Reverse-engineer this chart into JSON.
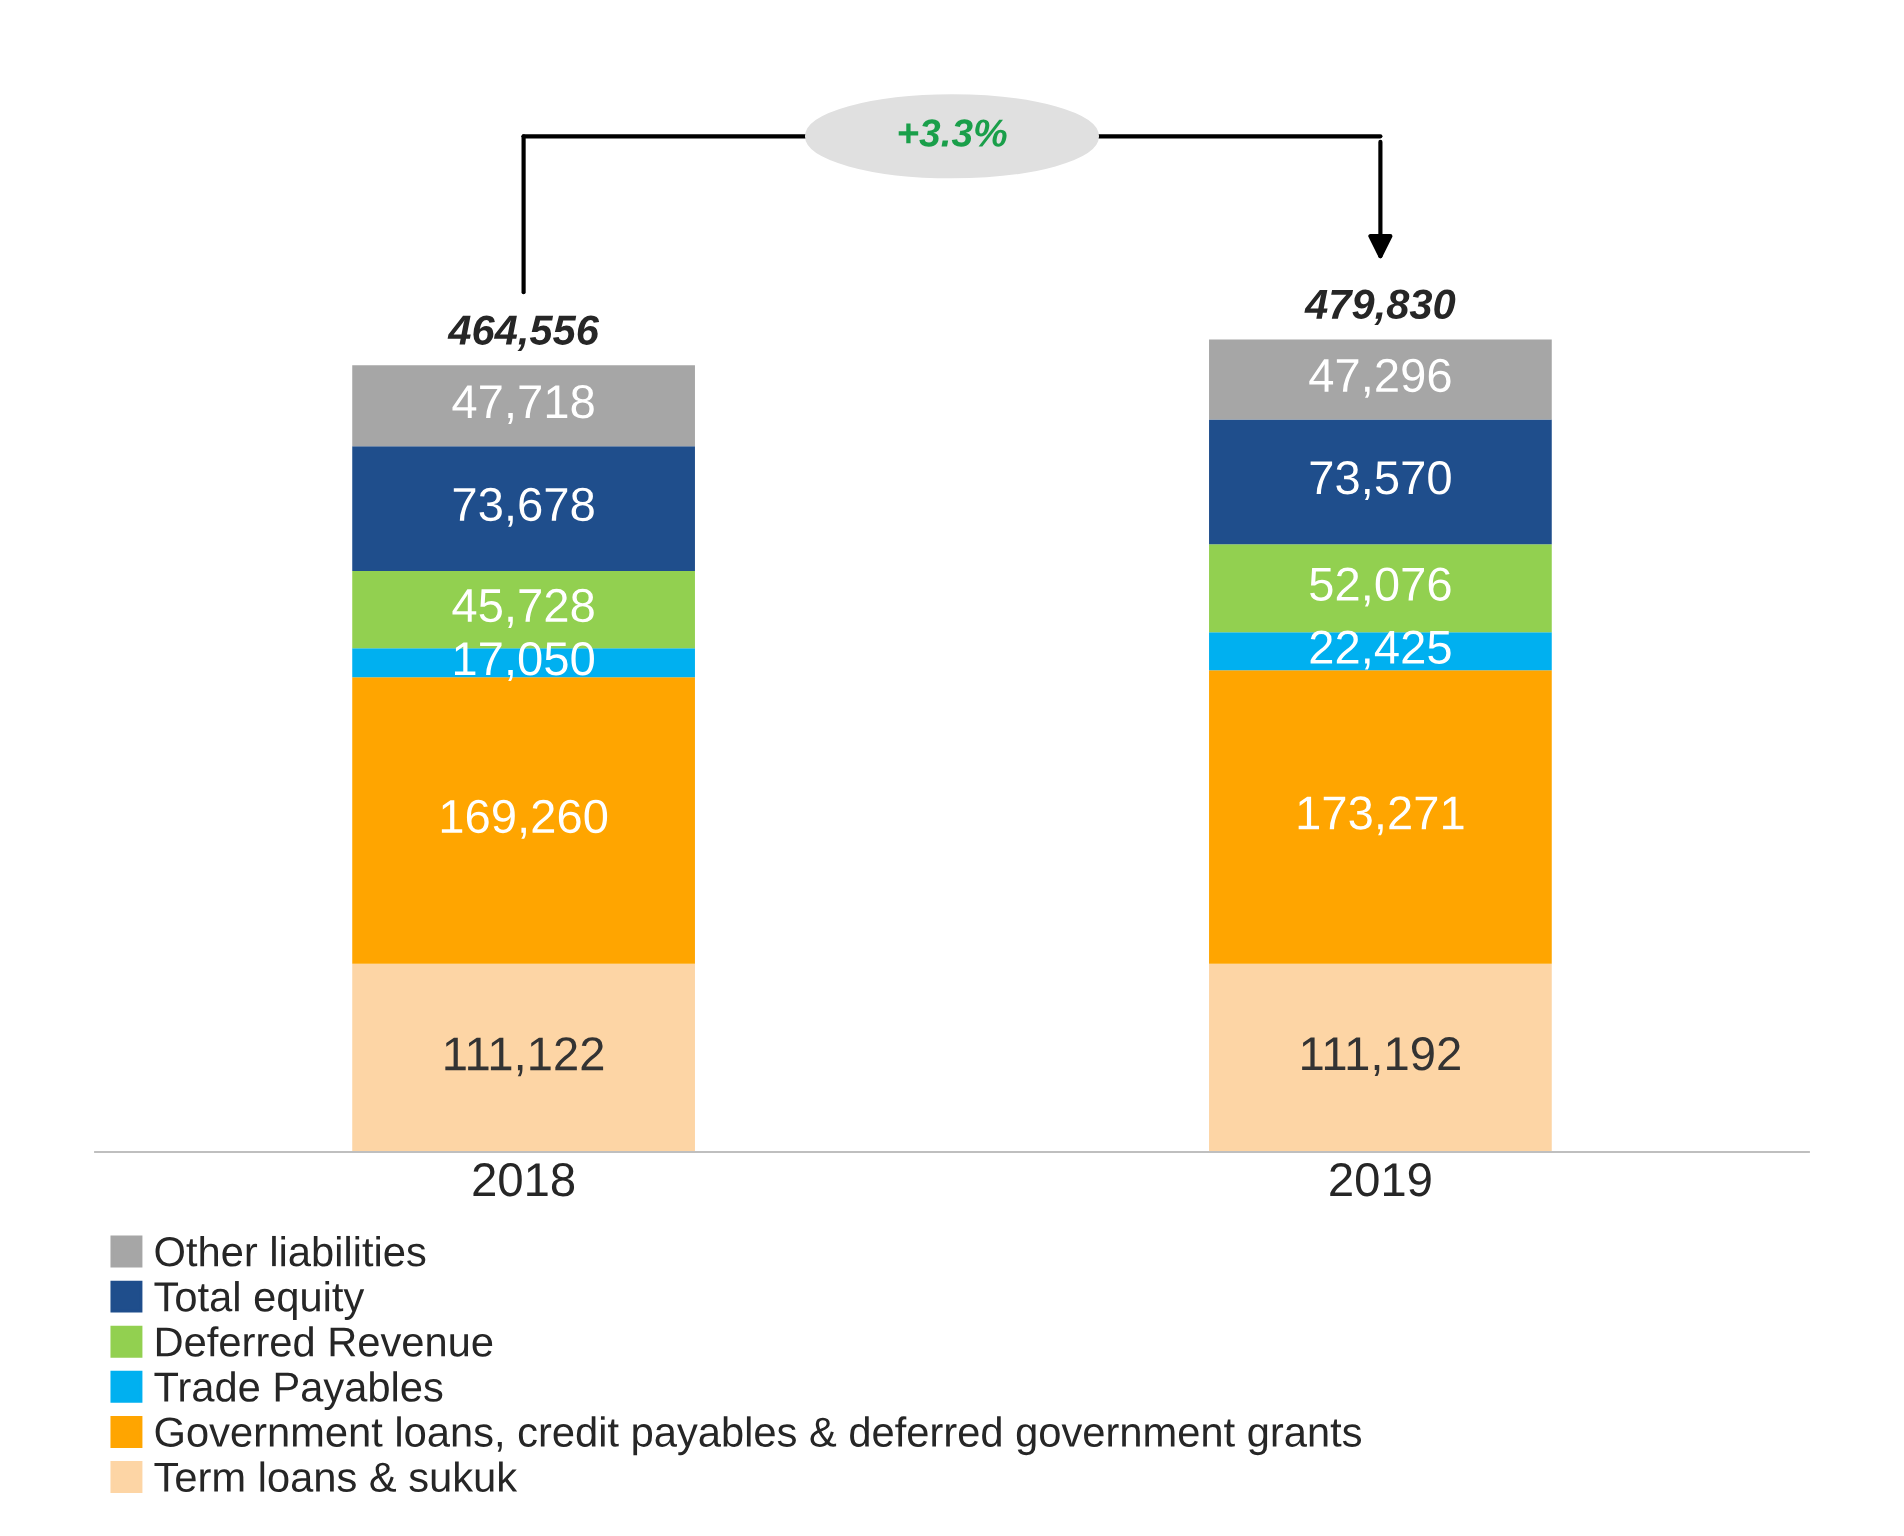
{
  "chart_data": {
    "type": "bar",
    "stacked": true,
    "categories": [
      "2018",
      "2019"
    ],
    "series": [
      {
        "name": "Term loans & sukuk",
        "color": "#fdd5a5",
        "values": [
          111122,
          111192
        ],
        "value_labels": [
          "111,122",
          "111,192"
        ]
      },
      {
        "name": "Government loans, credit payables & deferred government grants",
        "color": "#ffa500",
        "values": [
          169260,
          173271
        ],
        "value_labels": [
          "169,260",
          "173,271"
        ]
      },
      {
        "name": "Trade Payables",
        "color": "#00b0f0",
        "values": [
          17050,
          22425
        ],
        "value_labels": [
          "17,050",
          "22,425"
        ]
      },
      {
        "name": "Deferred Revenue",
        "color": "#92d050",
        "values": [
          45728,
          52076
        ],
        "value_labels": [
          "45,728",
          "52,076"
        ]
      },
      {
        "name": "Total equity",
        "color": "#1f4e8c",
        "values": [
          73678,
          73570
        ],
        "value_labels": [
          "73,678",
          "73,570"
        ]
      },
      {
        "name": "Other liabilities",
        "color": "#a6a6a6",
        "values": [
          47718,
          47296
        ],
        "value_labels": [
          "47,718",
          "47,296"
        ]
      }
    ],
    "totals": [
      "464,556",
      "479,830"
    ],
    "annotations": [
      "+3.3%"
    ],
    "legend": "bottom",
    "tick_labels": "x"
  }
}
